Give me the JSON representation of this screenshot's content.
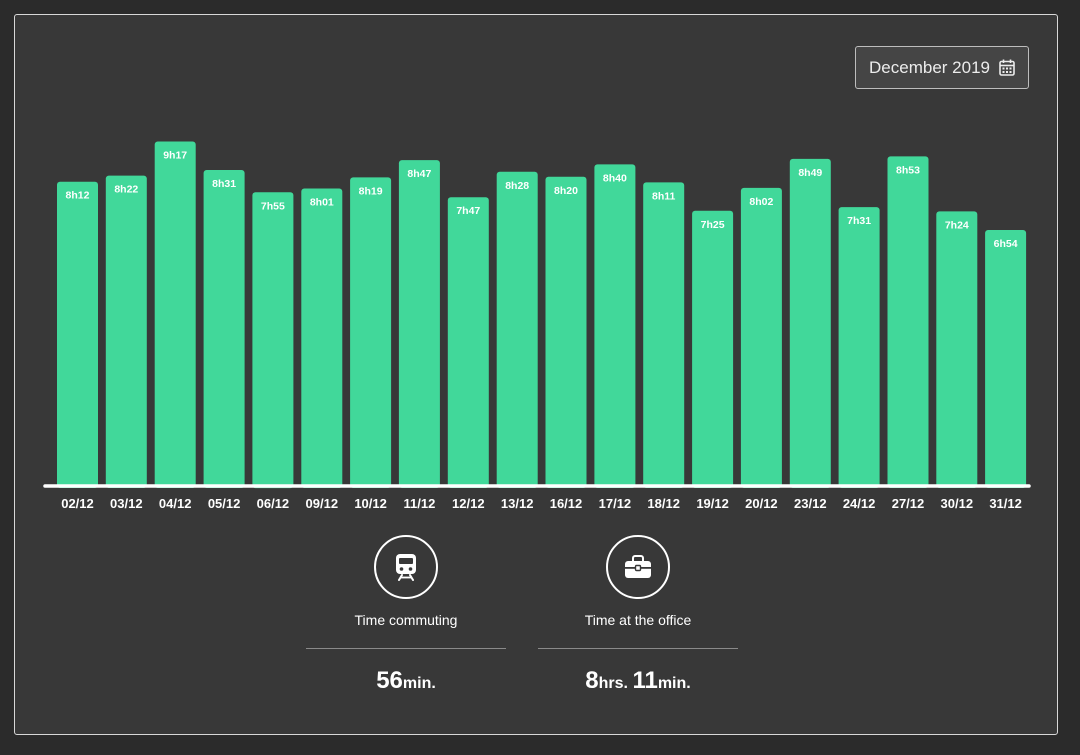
{
  "month_picker": {
    "label": "December 2019",
    "icon": "calendar-icon"
  },
  "colors": {
    "bar": "#41d89a",
    "axis": "#ffffff",
    "panel": "#383838"
  },
  "chart_data": {
    "type": "bar",
    "categories": [
      "02/12",
      "03/12",
      "04/12",
      "05/12",
      "06/12",
      "09/12",
      "10/12",
      "11/12",
      "12/12",
      "13/12",
      "16/12",
      "17/12",
      "18/12",
      "19/12",
      "20/12",
      "23/12",
      "24/12",
      "27/12",
      "30/12",
      "31/12"
    ],
    "labels": [
      "8h12",
      "8h22",
      "9h17",
      "8h31",
      "7h55",
      "8h01",
      "8h19",
      "8h47",
      "7h47",
      "8h28",
      "8h20",
      "8h40",
      "8h11",
      "7h25",
      "8h02",
      "8h49",
      "7h31",
      "8h53",
      "7h24",
      "6h54"
    ],
    "values_minutes": [
      492,
      502,
      557,
      511,
      475,
      481,
      499,
      527,
      467,
      508,
      500,
      520,
      491,
      445,
      482,
      529,
      451,
      533,
      444,
      414
    ],
    "ylim_minutes": [
      0,
      608
    ],
    "grid": false,
    "legend": "none"
  },
  "stats": [
    {
      "id": "commute",
      "icon": "train-icon",
      "label": "Time commuting",
      "value_parts": [
        {
          "num": "56",
          "unit": "min."
        }
      ]
    },
    {
      "id": "office",
      "icon": "briefcase-icon",
      "label": "Time at the office",
      "value_parts": [
        {
          "num": "8",
          "unit": "hrs."
        },
        {
          "num": "11",
          "unit": "min."
        }
      ]
    }
  ]
}
